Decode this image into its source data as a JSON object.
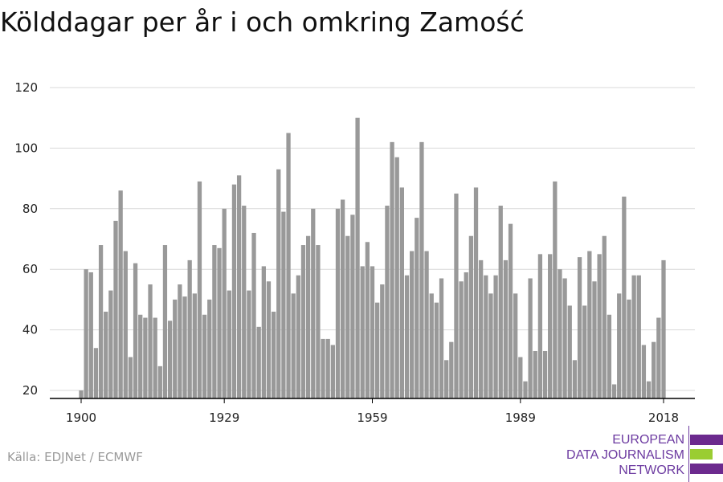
{
  "title": "Kölddagar per år i och omkring Zamość",
  "source": "Källa: EDJNet / ECMWF",
  "logo": {
    "line1": "EUROPEAN",
    "line2": "DATA JOURNALISM",
    "line3": "NETWORK"
  },
  "colors": {
    "bar": "#999999",
    "grid": "#d9d9d9",
    "axis": "#000000",
    "brand_purple": "#6c2a8e",
    "brand_green": "#9acd32"
  },
  "chart_data": {
    "type": "bar",
    "title": "Kölddagar per år i och omkring Zamość",
    "xlabel": "",
    "ylabel": "",
    "x_start": 1900,
    "x_end": 2018,
    "x_ticks": [
      1900,
      1929,
      1959,
      1989,
      2018
    ],
    "y_ticks": [
      20,
      40,
      60,
      80,
      100,
      120
    ],
    "ylim": [
      17,
      123
    ],
    "grid": true,
    "values": [
      20,
      60,
      59,
      34,
      68,
      46,
      53,
      76,
      86,
      66,
      31,
      62,
      45,
      44,
      55,
      44,
      28,
      68,
      43,
      50,
      55,
      51,
      63,
      52,
      89,
      45,
      50,
      68,
      67,
      80,
      53,
      88,
      91,
      81,
      53,
      72,
      41,
      61,
      56,
      46,
      93,
      79,
      105,
      52,
      58,
      68,
      71,
      80,
      68,
      37,
      37,
      35,
      80,
      83,
      71,
      78,
      110,
      61,
      69,
      61,
      49,
      55,
      81,
      102,
      97,
      87,
      58,
      66,
      77,
      102,
      66,
      52,
      49,
      57,
      30,
      36,
      85,
      56,
      59,
      71,
      87,
      63,
      58,
      52,
      58,
      81,
      63,
      75,
      52,
      31,
      23,
      57,
      33,
      65,
      33,
      65,
      89,
      60,
      57,
      48,
      30,
      64,
      48,
      66,
      56,
      65,
      71,
      45,
      22,
      52,
      84,
      50,
      58,
      58,
      35,
      23,
      36,
      44,
      63
    ]
  }
}
